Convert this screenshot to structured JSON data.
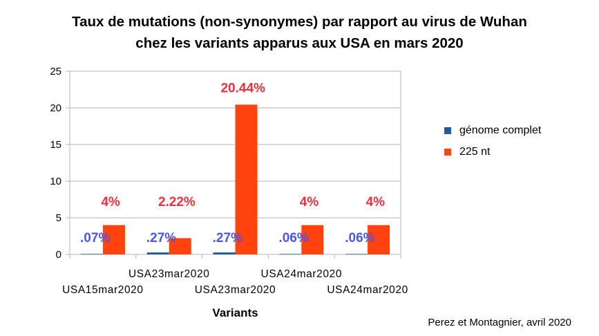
{
  "chart_data": {
    "type": "bar",
    "title_line1": "Taux de mutations (non-synonymes) par rapport au virus de Wuhan",
    "title_line2": "chez les  variants  apparus  aux USA en mars 2020",
    "xlabel": "Variants",
    "ylabel": "",
    "ylim": [
      0,
      25
    ],
    "yticks": [
      "0",
      "5",
      "10",
      "15",
      "20",
      "25"
    ],
    "grid": true,
    "legend_position": "right",
    "categories": [
      "USA15mar2020",
      "USA23mar2020",
      "USA23mar2020",
      "USA24mar2020",
      "USA24mar2020"
    ],
    "series": [
      {
        "name": "génome complet",
        "color": "#1f5c99",
        "label_color": "#4a57e8",
        "values": [
          0.07,
          0.27,
          0.27,
          0.06,
          0.06
        ],
        "labels": [
          ".07%",
          ".27%",
          ".27%",
          ".06%",
          ".06%"
        ]
      },
      {
        "name": "225 nt",
        "color": "#ff420e",
        "label_color": "#f0303c",
        "values": [
          4,
          2.22,
          20.44,
          4,
          4
        ],
        "labels": [
          "4%",
          "2.22%",
          "20.44%",
          "4%",
          "4%"
        ]
      }
    ]
  },
  "credit": "Perez et Montagnier, avril 2020"
}
